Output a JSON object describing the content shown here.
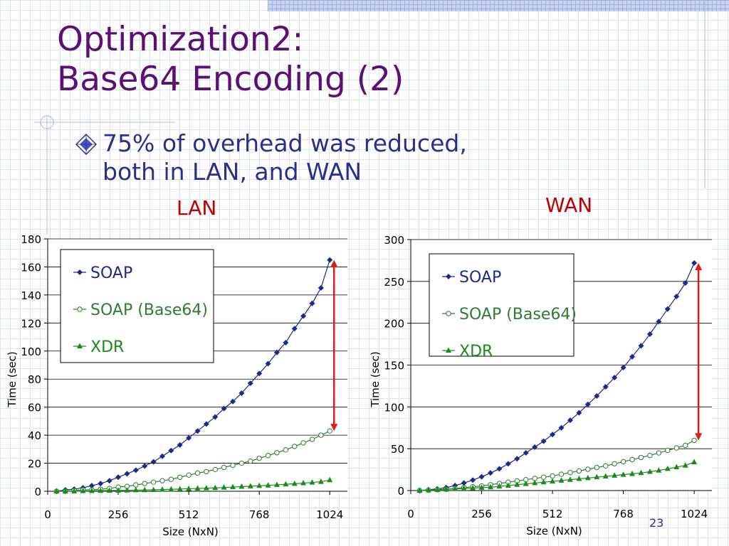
{
  "slide": {
    "title_line1": "Optimization2:",
    "title_line2": "Base64 Encoding (2)",
    "bullet": "75% of overhead was reduced,\nboth in LAN, and WAN",
    "label_lan": "LAN",
    "label_wan": "WAN",
    "page_number": "23"
  },
  "colors": {
    "title": "#5b1073",
    "bullet_text": "#2b2f8c",
    "label": "#c00000",
    "soap": "#1c2a8c",
    "soap_base64": "#2e7d32",
    "xdr": "#1a8a1a",
    "arrow": "#e0191a"
  },
  "chart_data": [
    {
      "type": "line",
      "title": "LAN",
      "xlabel": "Size (NxN)",
      "ylabel": "Time (sec)",
      "xlim": [
        0,
        1088
      ],
      "ylim": [
        0,
        180
      ],
      "xticks": [
        0,
        256,
        512,
        768,
        1024
      ],
      "yticks": [
        0,
        20,
        40,
        60,
        80,
        100,
        120,
        140,
        160,
        180
      ],
      "legend_position": "top-left",
      "grid": true,
      "x": [
        32,
        64,
        96,
        128,
        160,
        192,
        224,
        256,
        288,
        320,
        352,
        384,
        416,
        448,
        480,
        512,
        544,
        576,
        608,
        640,
        672,
        704,
        736,
        768,
        800,
        832,
        864,
        896,
        928,
        960,
        992,
        1024
      ],
      "series": [
        {
          "name": "SOAP",
          "marker": "diamond",
          "values": [
            0,
            1,
            1.5,
            2.5,
            4,
            5.5,
            7.5,
            10,
            12.5,
            15,
            18,
            21,
            25,
            29,
            33,
            38,
            43,
            48,
            53,
            59,
            64,
            70,
            77,
            84,
            91,
            99,
            106,
            116,
            125,
            134,
            145,
            165
          ]
        },
        {
          "name": "SOAP (Base64)",
          "marker": "circle",
          "values": [
            0,
            0,
            0.5,
            1,
            1,
            1.5,
            2,
            3,
            3.5,
            4.5,
            5.5,
            6.5,
            7.5,
            8.5,
            10,
            11.5,
            13,
            14,
            15.5,
            17,
            18.5,
            20,
            21.5,
            23.5,
            25.5,
            27.5,
            29.5,
            32,
            34.5,
            37,
            40,
            43
          ]
        },
        {
          "name": "XDR",
          "marker": "triangle",
          "values": [
            0,
            0,
            0,
            0.2,
            0.3,
            0.4,
            0.5,
            0.6,
            0.7,
            0.8,
            0.9,
            1,
            1.2,
            1.4,
            1.6,
            1.8,
            2,
            2.2,
            2.4,
            2.7,
            3,
            3.3,
            3.6,
            3.9,
            4.2,
            4.6,
            5,
            5.4,
            5.8,
            6.3,
            6.8,
            8
          ]
        }
      ],
      "annotation": {
        "type": "double-arrow",
        "x": 1024,
        "from": 43,
        "to": 165
      }
    },
    {
      "type": "line",
      "title": "WAN",
      "xlabel": "Size (NxN)",
      "ylabel": "Time (sec)",
      "xlim": [
        0,
        1088
      ],
      "ylim": [
        0,
        300
      ],
      "xticks": [
        0,
        256,
        512,
        768,
        1024
      ],
      "yticks": [
        0,
        50,
        100,
        150,
        200,
        250,
        300
      ],
      "legend_position": "top-left",
      "grid": true,
      "x": [
        32,
        64,
        96,
        128,
        160,
        192,
        224,
        256,
        288,
        320,
        352,
        384,
        416,
        448,
        480,
        512,
        544,
        576,
        608,
        640,
        672,
        704,
        736,
        768,
        800,
        832,
        864,
        896,
        928,
        960,
        992,
        1024
      ],
      "series": [
        {
          "name": "SOAP",
          "marker": "diamond",
          "values": [
            0,
            1,
            2,
            3.5,
            6,
            9,
            12.5,
            16.5,
            21,
            26,
            32,
            38,
            45,
            52,
            59,
            67,
            75,
            84,
            93,
            103,
            113,
            124,
            135,
            147,
            160,
            173,
            187,
            202,
            217,
            232,
            248,
            272
          ]
        },
        {
          "name": "SOAP (Base64)",
          "marker": "circle",
          "values": [
            0,
            0.5,
            1,
            1.5,
            2.5,
            3.5,
            4.5,
            5.5,
            7,
            8.5,
            10,
            11.5,
            13,
            14.5,
            16,
            17.5,
            19.5,
            21.5,
            23.5,
            25.5,
            27.5,
            29.5,
            32,
            34.5,
            37,
            39.5,
            42,
            45,
            48,
            51,
            54,
            60
          ]
        },
        {
          "name": "XDR",
          "marker": "triangle",
          "values": [
            0,
            0.5,
            1,
            1.5,
            2,
            2.5,
            3,
            3.5,
            4,
            5,
            6,
            7,
            8,
            9,
            10,
            11,
            12,
            13,
            14,
            15,
            16,
            17,
            18,
            19,
            20,
            21,
            22.5,
            24,
            26,
            28,
            30,
            34
          ]
        }
      ],
      "annotation": {
        "type": "double-arrow",
        "x": 1024,
        "from": 60,
        "to": 272
      }
    }
  ]
}
